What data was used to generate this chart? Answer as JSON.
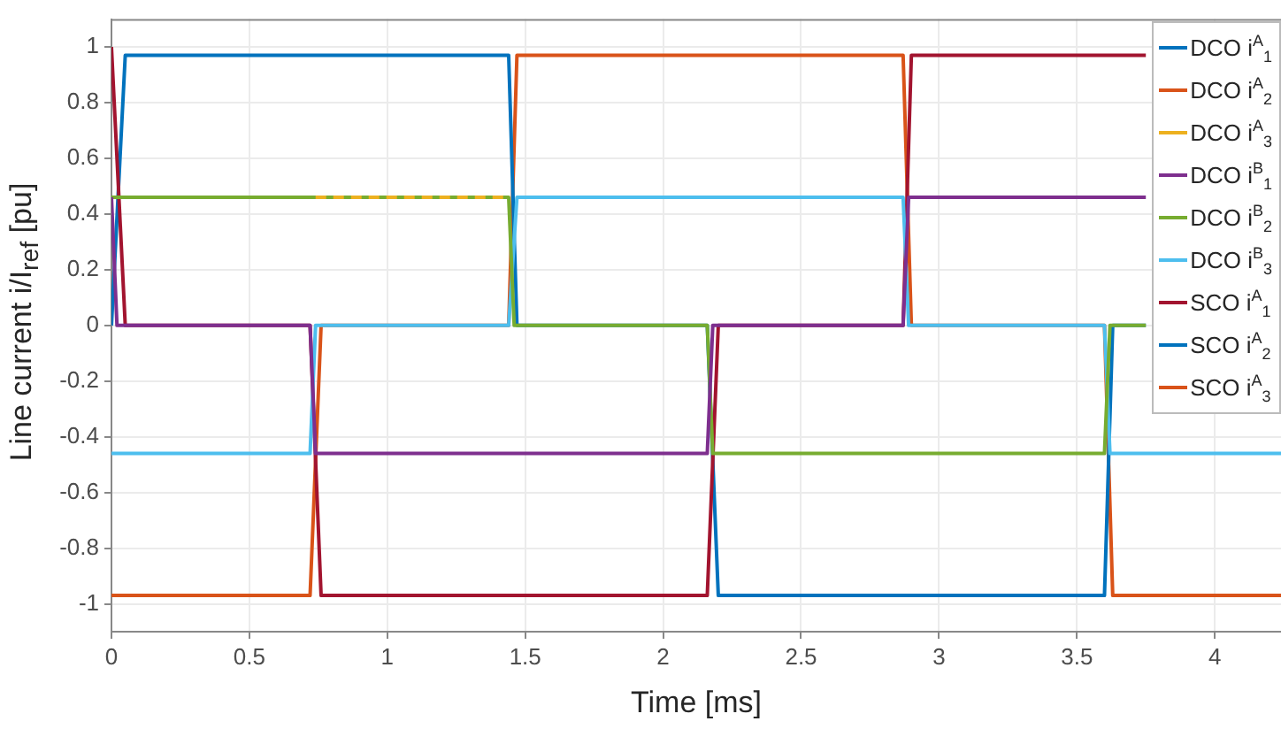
{
  "chart_data": {
    "type": "line",
    "xlabel": "Time [ms]",
    "ylabel": "Line current i/I$_{ref}$ [pu]",
    "xlim": [
      0,
      4.24
    ],
    "xticks": [
      0,
      0.5,
      1,
      1.5,
      2,
      2.5,
      3,
      3.5,
      4
    ],
    "ylim": [
      -1.1,
      1.1
    ],
    "yticks": [
      -1,
      -0.8,
      -0.6,
      -0.4,
      -0.2,
      0,
      0.2,
      0.4,
      0.6,
      0.8,
      1
    ],
    "grid": true,
    "legend": "top right",
    "marker": "none",
    "line_style": "solid",
    "series": [
      {
        "name": "DCO i$^{A}$$_{1}$",
        "color": "#0072bd"
      },
      {
        "name": "DCO i$^{A}$$_{2}$",
        "color": "#d95319"
      },
      {
        "name": "DCO i$^{A}$$_{3}$",
        "color": "#edb120",
        "line_style": "dashed",
        "x": [
          0.74,
          1.42
        ],
        "values": [
          0.46,
          0.46
        ]
      },
      {
        "name": "DCO i$^{B}$$_{1}$",
        "color": "#7e2f8e",
        "x": [
          0,
          0.02,
          0.72,
          0.74,
          2.16,
          2.18,
          2.87,
          2.89,
          3.75
        ],
        "values": [
          0.46,
          0,
          0,
          -0.46,
          -0.46,
          0,
          0,
          0.46,
          0.46
        ]
      },
      {
        "name": "DCO i$^{B}$$_{2}$",
        "color": "#77ac30",
        "x": [
          0,
          1.44,
          1.46,
          2.16,
          2.18,
          3.6,
          3.62,
          3.75
        ],
        "values": [
          0.46,
          0.46,
          0,
          0,
          -0.46,
          -0.46,
          0,
          0
        ]
      },
      {
        "name": "DCO i$^{B}$$_{3}$",
        "color": "#4dbeee",
        "x": [
          0,
          0.72,
          0.74,
          1.44,
          1.47,
          2.87,
          2.89,
          3.6,
          3.62,
          4.24
        ],
        "values": [
          -0.46,
          -0.46,
          0,
          0,
          0.46,
          0.46,
          0,
          0,
          -0.46,
          -0.46
        ]
      },
      {
        "name": "SCO i$^{A}$$_{1}$",
        "color": "#a2142f",
        "x": [
          0,
          0.05,
          0.72,
          0.76,
          2.16,
          2.2,
          2.87,
          2.9,
          3.75
        ],
        "values": [
          1,
          0,
          0,
          -0.97,
          -0.97,
          0,
          0,
          0.97,
          0.97
        ]
      },
      {
        "name": "SCO i$^{A}$$_{2}$",
        "color": "#0072bd",
        "x": [
          0,
          0.05,
          1.44,
          1.47,
          2.16,
          2.2,
          3.6,
          3.63,
          3.75
        ],
        "values": [
          0,
          0.97,
          0.97,
          0,
          0,
          -0.97,
          -0.97,
          0,
          0
        ]
      },
      {
        "name": "SCO i$^{A}$$_{3}$",
        "color": "#d95319",
        "x": [
          0,
          0.72,
          0.76,
          1.44,
          1.47,
          2.87,
          2.9,
          3.6,
          3.63,
          4.24
        ],
        "values": [
          -0.97,
          -0.97,
          0,
          0,
          0.97,
          0.97,
          0,
          0,
          -0.97,
          -0.97
        ]
      }
    ]
  }
}
